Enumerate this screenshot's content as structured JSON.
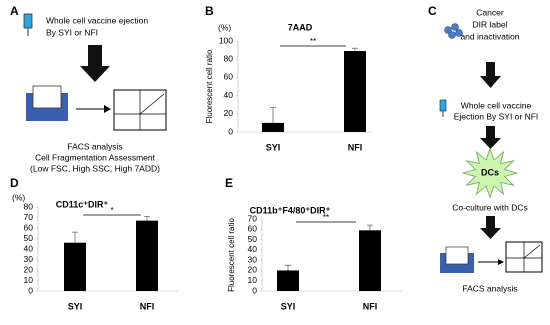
{
  "panel_a": {
    "label": "A",
    "syringe_text": [
      "Whole cell vaccine ejection",
      "By SYI or NFI"
    ],
    "caption": [
      "FACS analysis",
      "Cell Fragmentation Assessment",
      "(Low FSC, High SSC, High 7ADD)"
    ]
  },
  "panel_c": {
    "label": "C",
    "cancer_text": [
      "Cancer",
      "DIR label",
      "and inactivation"
    ],
    "vaccine_text": [
      "Whole cell vaccine",
      "Ejection By SYI or NFI"
    ],
    "dc_label": "DCs",
    "coculture": "Co-culture with DCs",
    "facs": "FACS analysis"
  },
  "chart_data": [
    {
      "type": "bar",
      "panel": "B",
      "title": "7AAD",
      "unit": "(%)",
      "ylabel": "Fluorescent cell ratio",
      "categories": [
        "SYI",
        "NFI"
      ],
      "values": [
        10,
        89
      ],
      "errors": [
        17,
        3
      ],
      "color": "#000000",
      "ylim": [
        0,
        100
      ],
      "yticks": [
        0,
        20,
        40,
        60,
        80,
        100
      ],
      "significance": "**"
    },
    {
      "type": "bar",
      "panel": "D",
      "title": "CD11c⁺DIR⁺",
      "unit": "(%)",
      "categories": [
        "SYI",
        "NFI"
      ],
      "values": [
        46,
        67
      ],
      "errors": [
        10,
        4
      ],
      "color": "#000000",
      "ylim": [
        0,
        80
      ],
      "yticks": [
        0,
        10,
        20,
        30,
        40,
        50,
        60,
        70,
        80
      ],
      "significance": "*"
    },
    {
      "type": "bar",
      "panel": "E",
      "title": "CD11b⁺F4/80⁺DIR⁺",
      "ylabel": "Fluorescent cell ratio",
      "categories": [
        "SYI",
        "NFI"
      ],
      "values": [
        20,
        59
      ],
      "errors": [
        5,
        5
      ],
      "color": "#000000",
      "ylim": [
        0,
        70
      ],
      "yticks": [
        0,
        10,
        20,
        30,
        40,
        50,
        60,
        70
      ],
      "significance": "**"
    }
  ]
}
